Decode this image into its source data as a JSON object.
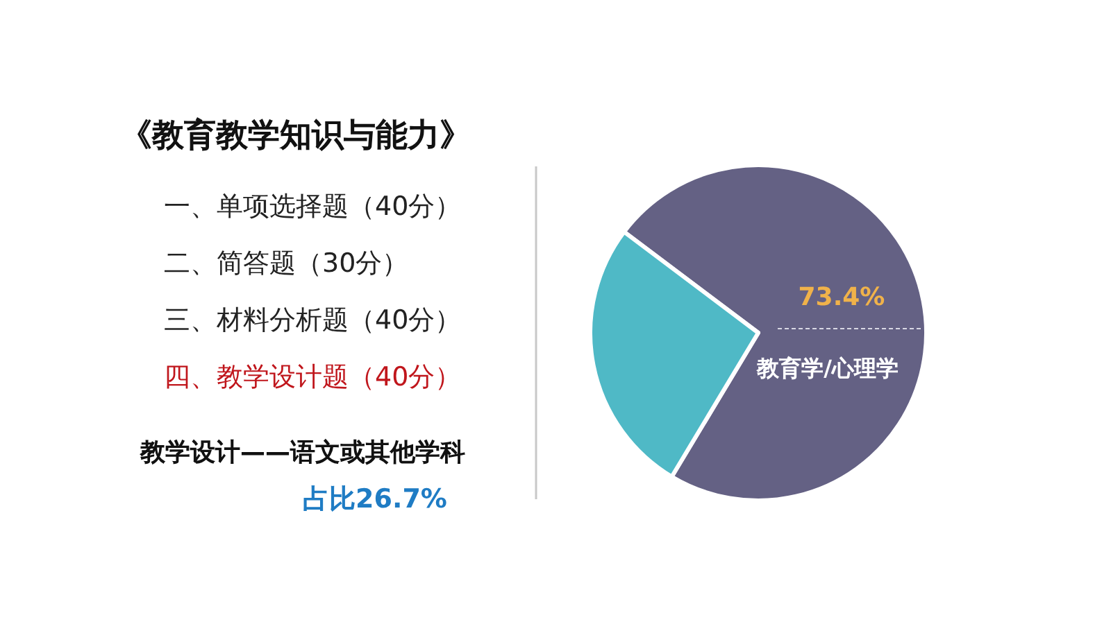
{
  "chart_data": {
    "type": "pie",
    "title": "《教育教学知识与能力》",
    "annotations": [
      "一、单项选择题（40分）",
      "二、简答题（30分）",
      "三、材料分析题（40分）",
      "四、教学设计题（40分）"
    ],
    "categories": [
      "教育学/心理学",
      "教学设计——语文或其他学科"
    ],
    "values": [
      73.4,
      26.7
    ],
    "colors": [
      "#646184",
      "#4fb9c6"
    ],
    "value_labels": [
      "73.4%",
      "占比26.7%"
    ],
    "legend": false
  }
}
